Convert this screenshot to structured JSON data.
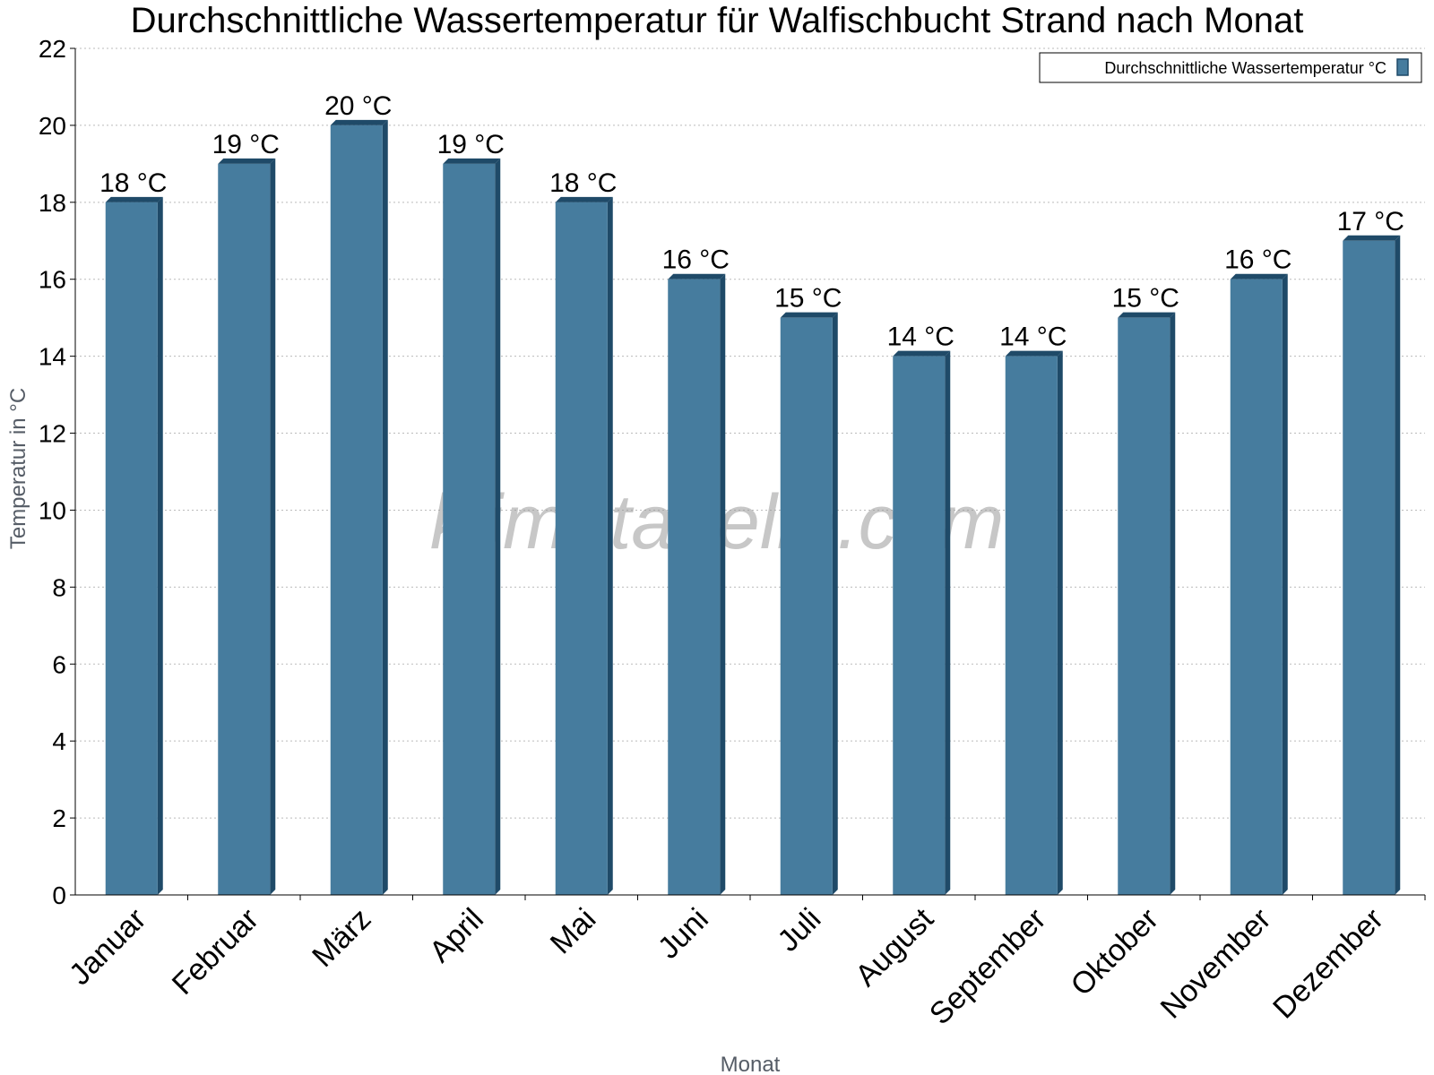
{
  "chart_data": {
    "type": "bar",
    "title": "Durchschnittliche Wassertemperatur für Walfischbucht Strand nach Monat",
    "xlabel": "Monat",
    "ylabel": "Temperatur in °C",
    "categories": [
      "Januar",
      "Februar",
      "März",
      "April",
      "Mai",
      "Juni",
      "Juli",
      "August",
      "September",
      "Oktober",
      "November",
      "Dezember"
    ],
    "series": [
      {
        "name": "Durchschnittliche Wassertemperatur °C",
        "values": [
          18,
          19,
          20,
          19,
          18,
          16,
          15,
          14,
          14,
          15,
          16,
          17
        ],
        "labels": [
          "18 °C",
          "19 °C",
          "20 °C",
          "19 °C",
          "18 °C",
          "16 °C",
          "15 °C",
          "14 °C",
          "14 °C",
          "15 °C",
          "16 °C",
          "17 °C"
        ],
        "color": "#467c9e",
        "edge_color": "#1f4a68"
      }
    ],
    "ylim": [
      0,
      22
    ],
    "yticks": [
      "0",
      "2",
      "4",
      "6",
      "8",
      "10",
      "12",
      "14",
      "16",
      "18",
      "20",
      "22"
    ],
    "grid": true,
    "legend_position": "top-right",
    "watermark": "klimatabelle.com"
  }
}
